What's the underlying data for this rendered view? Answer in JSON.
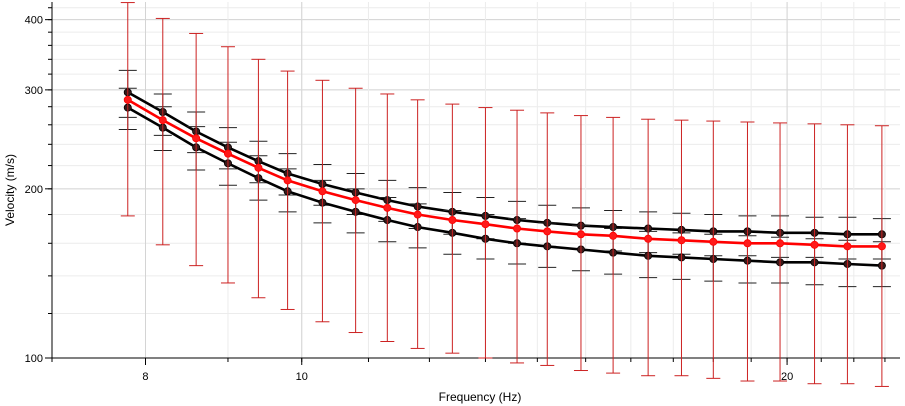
{
  "chart_data": {
    "type": "line",
    "xlabel": "Frequency (Hz)",
    "ylabel": "Velocity (m/s)",
    "xscale": "log",
    "yscale": "log",
    "xlim": [
      7.0,
      23.5
    ],
    "ylim": [
      100,
      430
    ],
    "x_ticks": [
      8,
      10,
      20
    ],
    "y_ticks": [
      100,
      200,
      300,
      400
    ],
    "grid": true,
    "x": [
      7.8,
      8.2,
      8.6,
      9.0,
      9.4,
      9.8,
      10.3,
      10.8,
      11.3,
      11.8,
      12.4,
      13.0,
      13.6,
      14.2,
      14.9,
      15.6,
      16.4,
      17.2,
      18.0,
      18.9,
      19.8,
      20.8,
      21.8,
      22.9
    ],
    "series": [
      {
        "color": "#ff0000",
        "values": [
          288,
          265,
          246,
          231,
          218,
          207,
          198,
          191,
          185,
          180,
          176,
          173,
          170,
          168,
          166,
          165,
          163,
          162,
          161,
          160,
          160,
          159,
          158,
          158
        ],
        "err_upper": [
          429,
          402,
          378,
          358,
          340,
          324,
          312,
          302,
          295,
          288,
          283,
          279,
          276,
          273,
          270,
          268,
          266,
          265,
          264,
          263,
          262,
          261,
          260,
          259
        ],
        "err_lower": [
          179,
          159,
          146,
          136,
          128,
          122,
          116,
          111,
          107,
          104,
          102,
          100,
          98,
          97,
          95,
          94,
          93,
          93,
          92,
          91,
          91,
          90,
          90,
          89
        ]
      },
      {
        "color": "#000000",
        "values": [
          297,
          274,
          253,
          237,
          224,
          213,
          204,
          197,
          191,
          186,
          182,
          179,
          176,
          174,
          172,
          171,
          170,
          169,
          168,
          168,
          167,
          167,
          166,
          166
        ],
        "err_upper": [
          325,
          295,
          274,
          257,
          243,
          231,
          221,
          213,
          207,
          201,
          197,
          193,
          190,
          187,
          185,
          183,
          182,
          181,
          180,
          179,
          179,
          178,
          178,
          177
        ],
        "err_lower": [
          268,
          249,
          232,
          217,
          205,
          195,
          187,
          180,
          175,
          170,
          166,
          163,
          160,
          158,
          156,
          155,
          154,
          153,
          152,
          152,
          151,
          151,
          150,
          150
        ]
      },
      {
        "color": "#000000",
        "values": [
          279,
          257,
          237,
          222,
          209,
          198,
          189,
          182,
          176,
          171,
          167,
          163,
          160,
          158,
          156,
          154,
          152,
          151,
          150,
          149,
          148,
          148,
          147,
          146
        ],
        "err_upper": [
          302,
          280,
          258,
          242,
          229,
          217,
          207,
          200,
          193,
          188,
          183,
          180,
          177,
          174,
          172,
          170,
          168,
          167,
          166,
          165,
          164,
          163,
          162,
          161
        ],
        "err_lower": [
          255,
          234,
          216,
          203,
          191,
          182,
          174,
          167,
          161,
          157,
          153,
          150,
          147,
          145,
          143,
          141,
          139,
          138,
          137,
          136,
          136,
          135,
          134,
          134
        ]
      }
    ]
  }
}
